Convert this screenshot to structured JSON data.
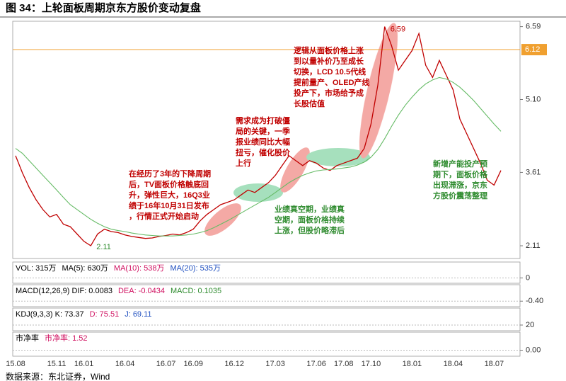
{
  "title": "图 34：上轮面板周期京东方股价变动复盘",
  "source": "数据来源：东北证券，Wind",
  "chart_data": {
    "type": "line",
    "categories": [
      "15.08",
      null,
      null,
      null,
      null,
      null,
      "15.11",
      null,
      null,
      null,
      "16.01",
      null,
      null,
      null,
      null,
      null,
      "16.04",
      null,
      null,
      null,
      null,
      null,
      "16.07",
      null,
      null,
      null,
      "16.09",
      null,
      null,
      null,
      null,
      null,
      "16.12",
      null,
      null,
      null,
      null,
      null,
      "17.03",
      null,
      null,
      null,
      null,
      null,
      "17.06",
      null,
      null,
      null,
      "17.08",
      null,
      null,
      null,
      "17.10",
      null,
      null,
      null,
      null,
      null,
      "18.01",
      null,
      null,
      null,
      null,
      null,
      "18.04",
      null,
      null,
      null,
      null,
      null,
      "18.07",
      null
    ],
    "series": [
      {
        "color": "#c00000",
        "values": [
          3.95,
          3.6,
          3.3,
          3.05,
          2.85,
          2.7,
          2.75,
          2.55,
          2.5,
          2.35,
          2.2,
          2.11,
          2.35,
          2.45,
          2.4,
          2.38,
          2.33,
          2.3,
          2.28,
          2.26,
          2.27,
          2.3,
          2.32,
          2.35,
          2.33,
          2.38,
          2.45,
          2.62,
          2.75,
          2.85,
          2.95,
          3.0,
          3.05,
          3.15,
          3.25,
          3.2,
          3.3,
          3.4,
          3.55,
          3.75,
          3.95,
          3.85,
          3.75,
          3.85,
          3.8,
          3.7,
          3.65,
          3.75,
          3.8,
          3.85,
          3.9,
          4.1,
          4.6,
          5.4,
          6.59,
          6.2,
          5.7,
          5.9,
          6.1,
          6.45,
          5.8,
          5.55,
          5.9,
          5.6,
          5.3,
          4.7,
          4.4,
          4.1,
          3.8,
          3.45,
          3.35,
          3.65
        ]
      },
      {
        "color": "#66bb66",
        "values": [
          4.1,
          4.0,
          3.85,
          3.7,
          3.55,
          3.4,
          3.25,
          3.1,
          2.95,
          2.85,
          2.75,
          2.65,
          2.57,
          2.5,
          2.45,
          2.42,
          2.4,
          2.37,
          2.35,
          2.33,
          2.32,
          2.31,
          2.31,
          2.31,
          2.32,
          2.33,
          2.35,
          2.38,
          2.42,
          2.48,
          2.55,
          2.62,
          2.7,
          2.78,
          2.86,
          2.94,
          3.02,
          3.1,
          3.2,
          3.3,
          3.4,
          3.48,
          3.55,
          3.6,
          3.64,
          3.66,
          3.67,
          3.68,
          3.7,
          3.72,
          3.76,
          3.82,
          3.92,
          4.08,
          4.3,
          4.55,
          4.78,
          4.98,
          5.15,
          5.3,
          5.42,
          5.5,
          5.55,
          5.52,
          5.45,
          5.35,
          5.22,
          5.08,
          4.92,
          4.76,
          4.6,
          4.45
        ]
      }
    ],
    "ylim": [
      1.85,
      6.7
    ],
    "yticks": [
      6.59,
      {
        "value": 5.1,
        "label": "5.10"
      },
      3.61,
      2.11
    ],
    "grid": false,
    "reference_line": {
      "value": 6.12,
      "color": "#f0a030"
    },
    "max_label": 6.59,
    "min_label": 2.11,
    "annotations": [
      {
        "color": "#c00000",
        "lines": [
          "在经历了3年的下降周期",
          "后，TV面板价格触底回",
          "升，弹性巨大，16Q3业",
          "绩于16年10月31日发布",
          "，行情正式开始启动"
        ]
      },
      {
        "color": "#c00000",
        "lines": [
          "需求成为打破僵",
          "局的关键，一季",
          "报业绩同比大幅",
          "扭亏，催化股价",
          "上行"
        ]
      },
      {
        "color": "#c00000",
        "lines": [
          "逻辑从面板价格上涨",
          "到以量补价乃至成长",
          "切换，LCD 10.5代线",
          "提前量产、OLED产线",
          "投产下，市场给予成",
          "长股估值"
        ]
      },
      {
        "color": "#2e8b2e",
        "lines": [
          "业绩真空期，业绩真",
          "空期，面板价格持续",
          "上涨，但股价略滞后"
        ]
      },
      {
        "color": "#2e8b2e",
        "lines": [
          "新增产能投产预",
          "期下，面板价格",
          "出现滞涨，京东",
          "方股价震荡整理"
        ]
      }
    ]
  },
  "panels": [
    {
      "legend": [
        {
          "text": "VOL: 315万",
          "color": "#000000"
        },
        {
          "text": "MA(5): 630万",
          "color": "#000000"
        },
        {
          "text": "MA(10): 538万",
          "color": "#d01060"
        },
        {
          "text": "MA(20): 535万",
          "color": "#2050c0"
        }
      ],
      "yticks": [
        0
      ]
    },
    {
      "legend": [
        {
          "text": "MACD(12,26,9) DIF: 0.0083",
          "color": "#000000"
        },
        {
          "text": "DEA: -0.0434",
          "color": "#d01060"
        },
        {
          "text": "MACD: 0.1035",
          "color": "#2e8b2e"
        }
      ],
      "yticks": [
        {
          "value": -0.4,
          "label": "-0.40"
        }
      ]
    },
    {
      "legend": [
        {
          "text": "KDJ(9,3,3) K: 73.37",
          "color": "#000000"
        },
        {
          "text": "D: 75.51",
          "color": "#d01060"
        },
        {
          "text": "J: 69.11",
          "color": "#2050c0"
        }
      ],
      "yticks": [
        20
      ]
    },
    {
      "legend": [
        {
          "text": "市净率",
          "color": "#000000"
        },
        {
          "text": "市净率: 1.52",
          "color": "#d01060"
        }
      ],
      "yticks": [
        {
          "value": 0,
          "label": "0.00"
        }
      ]
    }
  ]
}
